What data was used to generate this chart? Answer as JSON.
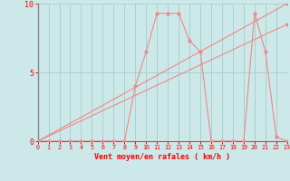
{
  "bg_color": "#cce8e8",
  "grid_color": "#aad0d0",
  "line_color": "#f08888",
  "xlabel": "Vent moyen/en rafales ( km/h )",
  "xlim": [
    0,
    23
  ],
  "ylim": [
    0,
    10
  ],
  "yticks": [
    0,
    5,
    10
  ],
  "xticks": [
    0,
    1,
    2,
    3,
    4,
    5,
    6,
    7,
    8,
    9,
    10,
    11,
    12,
    13,
    14,
    15,
    16,
    17,
    18,
    19,
    20,
    21,
    22,
    23
  ],
  "curve_x": [
    0,
    1,
    2,
    3,
    4,
    5,
    6,
    7,
    8,
    9,
    10,
    11,
    12,
    13,
    14,
    15,
    16,
    17,
    18,
    19,
    20,
    21,
    22,
    23
  ],
  "curve_y": [
    0,
    0,
    0,
    0,
    0,
    0,
    0,
    0,
    0,
    4.0,
    6.5,
    9.3,
    9.3,
    9.3,
    7.3,
    6.5,
    0,
    0,
    0,
    0,
    9.3,
    6.5,
    0.3,
    0
  ],
  "line1_x": [
    0,
    23
  ],
  "line1_y": [
    0,
    10.0
  ],
  "line2_x": [
    0,
    23
  ],
  "line2_y": [
    0,
    8.5
  ],
  "marker_size": 2.0,
  "linewidth": 0.8
}
